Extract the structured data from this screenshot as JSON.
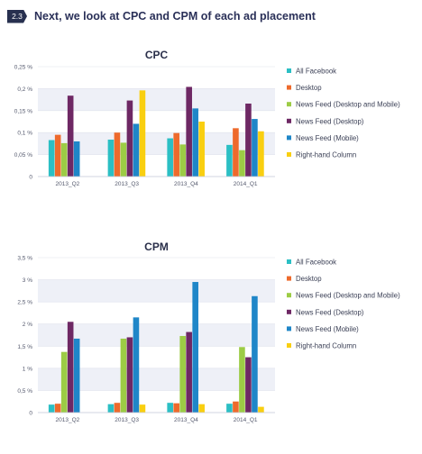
{
  "header": {
    "badge": "2.3",
    "title": "Next, we look at CPC and CPM of each ad placement"
  },
  "colors": {
    "All Facebook": "#2bbfc4",
    "Desktop": "#ee6a2c",
    "News Feed (Desktop and Mobile)": "#9ccc45",
    "News Feed (Desktop)": "#6e2864",
    "News Feed (Mobile)": "#1f86c8",
    "Right-hand Column": "#f9cf10"
  },
  "chart_data": [
    {
      "type": "bar",
      "title": "CPC",
      "categories": [
        "2013_Q2",
        "2013_Q3",
        "2013_Q4",
        "2014_Q1"
      ],
      "ylim": [
        0,
        0.25
      ],
      "yticks": [
        0,
        0.05,
        0.1,
        0.15,
        0.2,
        0.25
      ],
      "ytick_labels": [
        "0",
        "0,05 %",
        "0,1 %",
        "0,15 %",
        "0,2 %",
        "0,25 %"
      ],
      "grid": true,
      "legend_position": "right",
      "series": [
        {
          "name": "All Facebook",
          "values": [
            0.083,
            0.084,
            0.087,
            0.072
          ]
        },
        {
          "name": "Desktop",
          "values": [
            0.095,
            0.1,
            0.099,
            0.11
          ]
        },
        {
          "name": "News Feed (Desktop and Mobile)",
          "values": [
            0.076,
            0.077,
            0.073,
            0.06
          ]
        },
        {
          "name": "News Feed (Desktop)",
          "values": [
            0.184,
            0.173,
            0.204,
            0.166
          ]
        },
        {
          "name": "News Feed (Mobile)",
          "values": [
            0.08,
            0.12,
            0.155,
            0.131
          ]
        },
        {
          "name": "Right-hand Column",
          "values": [
            null,
            0.196,
            0.125,
            0.103
          ]
        }
      ]
    },
    {
      "type": "bar",
      "title": "CPM",
      "categories": [
        "2013_Q2",
        "2013_Q3",
        "2013_Q4",
        "2014_Q1"
      ],
      "ylim": [
        0,
        3.5
      ],
      "yticks": [
        0,
        0.5,
        1,
        1.5,
        2,
        2.5,
        3,
        3.5
      ],
      "ytick_labels": [
        "0",
        "0,5 %",
        "1 %",
        "1,5 %",
        "2 %",
        "2,5 %",
        "3 %",
        "3,5 %"
      ],
      "grid": true,
      "legend_position": "right",
      "series": [
        {
          "name": "All Facebook",
          "values": [
            0.18,
            0.19,
            0.22,
            0.2
          ]
        },
        {
          "name": "Desktop",
          "values": [
            0.2,
            0.22,
            0.21,
            0.25
          ]
        },
        {
          "name": "News Feed (Desktop and Mobile)",
          "values": [
            1.37,
            1.67,
            1.73,
            1.48
          ]
        },
        {
          "name": "News Feed (Desktop)",
          "values": [
            2.05,
            1.7,
            1.82,
            1.25
          ]
        },
        {
          "name": "News Feed (Mobile)",
          "values": [
            1.67,
            2.15,
            2.95,
            2.63
          ]
        },
        {
          "name": "Right-hand Column",
          "values": [
            null,
            0.18,
            0.19,
            0.13
          ]
        }
      ]
    }
  ]
}
